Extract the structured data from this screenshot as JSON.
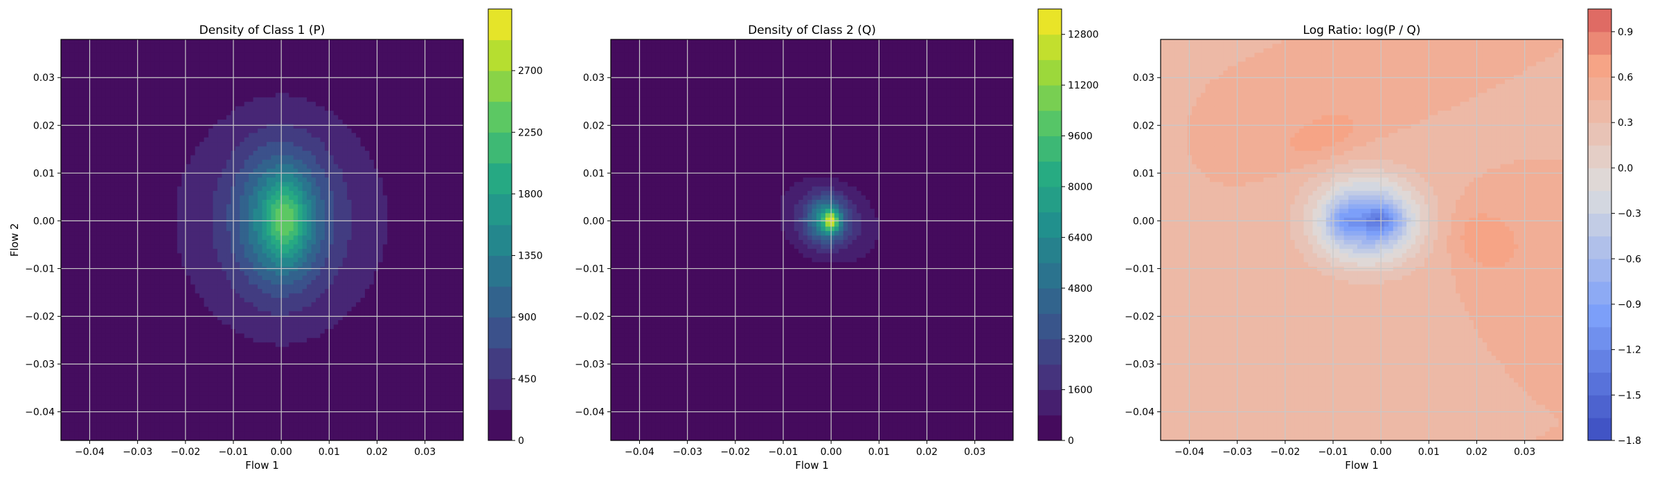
{
  "chart_data": [
    {
      "type": "heatmap",
      "title": "Density of Class 1 (P)",
      "xlabel": "Flow 1",
      "ylabel": "Flow 2",
      "xlim": [
        -0.046,
        0.038
      ],
      "ylim": [
        -0.046,
        0.038
      ],
      "xticks": [
        -0.04,
        -0.03,
        -0.02,
        -0.01,
        0.0,
        0.01,
        0.02,
        0.03
      ],
      "xtick_labels": [
        "−0.04",
        "−0.03",
        "−0.02",
        "−0.01",
        "0.00",
        "0.01",
        "0.02",
        "0.03"
      ],
      "yticks": [
        0.03,
        0.02,
        0.01,
        0.0,
        -0.01,
        -0.02,
        -0.03,
        -0.04
      ],
      "ytick_labels": [
        "0.03",
        "0.02",
        "0.01",
        "0.00",
        "−0.01",
        "−0.02",
        "−0.03",
        "−0.04"
      ],
      "grid": true,
      "colormap": "viridis",
      "colorbar": {
        "range": [
          0,
          3150
        ],
        "ticks": [
          0,
          450,
          900,
          1350,
          1800,
          2250,
          2700
        ],
        "levels": 14
      },
      "blobs": [
        {
          "cx": 0.0,
          "cy": 0.0,
          "rx": 0.024,
          "ry": 0.026,
          "peak": 520,
          "angle": 0
        },
        {
          "cx": 0.0,
          "cy": 0.0005,
          "rx": 0.009,
          "ry": 0.014,
          "peak": 1200,
          "angle": 0
        },
        {
          "cx": 0.001,
          "cy": 0.0,
          "rx": 0.004,
          "ry": 0.008,
          "peak": 750,
          "angle": 0
        }
      ]
    },
    {
      "type": "heatmap",
      "title": "Density of Class 2 (Q)",
      "xlabel": "Flow 1",
      "ylabel": "",
      "xlim": [
        -0.046,
        0.038
      ],
      "ylim": [
        -0.046,
        0.038
      ],
      "xticks": [
        -0.04,
        -0.03,
        -0.02,
        -0.01,
        0.0,
        0.01,
        0.02,
        0.03
      ],
      "xtick_labels": [
        "−0.04",
        "−0.03",
        "−0.02",
        "−0.01",
        "0.00",
        "0.01",
        "0.02",
        "0.03"
      ],
      "yticks": [
        0.03,
        0.02,
        0.01,
        0.0,
        -0.01,
        -0.02,
        -0.03,
        -0.04
      ],
      "ytick_labels": [
        "0.03",
        "0.02",
        "0.01",
        "0.00",
        "−0.01",
        "−0.02",
        "−0.03",
        "−0.04"
      ],
      "grid": true,
      "colormap": "viridis",
      "colorbar": {
        "range": [
          0,
          13600
        ],
        "ticks": [
          0,
          1600,
          3200,
          4800,
          6400,
          8000,
          9600,
          11200,
          12800
        ],
        "levels": 17
      },
      "blobs": [
        {
          "cx": -0.0005,
          "cy": 0.0,
          "rx": 0.011,
          "ry": 0.0085,
          "peak": 2100,
          "angle": -25
        },
        {
          "cx": -0.001,
          "cy": 0.0003,
          "rx": 0.004,
          "ry": 0.0045,
          "peak": 5200,
          "angle": 0
        },
        {
          "cx": 0.0,
          "cy": 0.0,
          "rx": 0.0016,
          "ry": 0.0022,
          "peak": 6200,
          "angle": 0
        }
      ]
    },
    {
      "type": "heatmap",
      "title": "Log Ratio: log(P / Q)",
      "xlabel": "Flow 1",
      "ylabel": "",
      "xlim": [
        -0.046,
        0.038
      ],
      "ylim": [
        -0.046,
        0.038
      ],
      "xticks": [
        -0.04,
        -0.03,
        -0.02,
        -0.01,
        0.0,
        0.01,
        0.02,
        0.03
      ],
      "xtick_labels": [
        "−0.04",
        "−0.03",
        "−0.02",
        "−0.01",
        "0.00",
        "0.01",
        "0.02",
        "0.03"
      ],
      "yticks": [
        0.03,
        0.02,
        0.01,
        0.0,
        -0.01,
        -0.02,
        -0.03,
        -0.04
      ],
      "ytick_labels": [
        "0.03",
        "0.02",
        "0.01",
        "0.00",
        "−0.01",
        "−0.02",
        "−0.03",
        "−0.04"
      ],
      "grid": true,
      "colormap": "coolwarm",
      "colorbar": {
        "range": [
          -1.8,
          1.05
        ],
        "ticks": [
          -1.8,
          -1.5,
          -1.2,
          -0.9,
          -0.6,
          -0.3,
          0.0,
          0.3,
          0.6,
          0.9
        ],
        "tick_labels": [
          "−1.8",
          "−1.5",
          "−1.2",
          "−0.9",
          "−0.6",
          "−0.3",
          "0.0",
          "0.3",
          "0.6",
          "0.9"
        ],
        "levels": 19
      },
      "base_value": 0.45,
      "blobs": [
        {
          "cx": -0.003,
          "cy": 0.0,
          "rx": 0.011,
          "ry": 0.009,
          "peak": -1.3,
          "angle": 0
        },
        {
          "cx": 0.0,
          "cy": 0.0,
          "rx": 0.004,
          "ry": 0.003,
          "peak": -0.6,
          "angle": 0
        },
        {
          "cx": -0.008,
          "cy": 0.0,
          "rx": 0.003,
          "ry": 0.0035,
          "peak": -0.4,
          "angle": 0
        },
        {
          "cx": -0.012,
          "cy": 0.018,
          "rx": 0.01,
          "ry": 0.005,
          "peak": 0.25,
          "angle": 20
        },
        {
          "cx": 0.022,
          "cy": -0.004,
          "rx": 0.008,
          "ry": 0.006,
          "peak": 0.3,
          "angle": -30
        },
        {
          "cx": -0.035,
          "cy": -0.02,
          "rx": 0.012,
          "ry": 0.012,
          "peak": -0.1,
          "angle": 0
        }
      ]
    }
  ]
}
